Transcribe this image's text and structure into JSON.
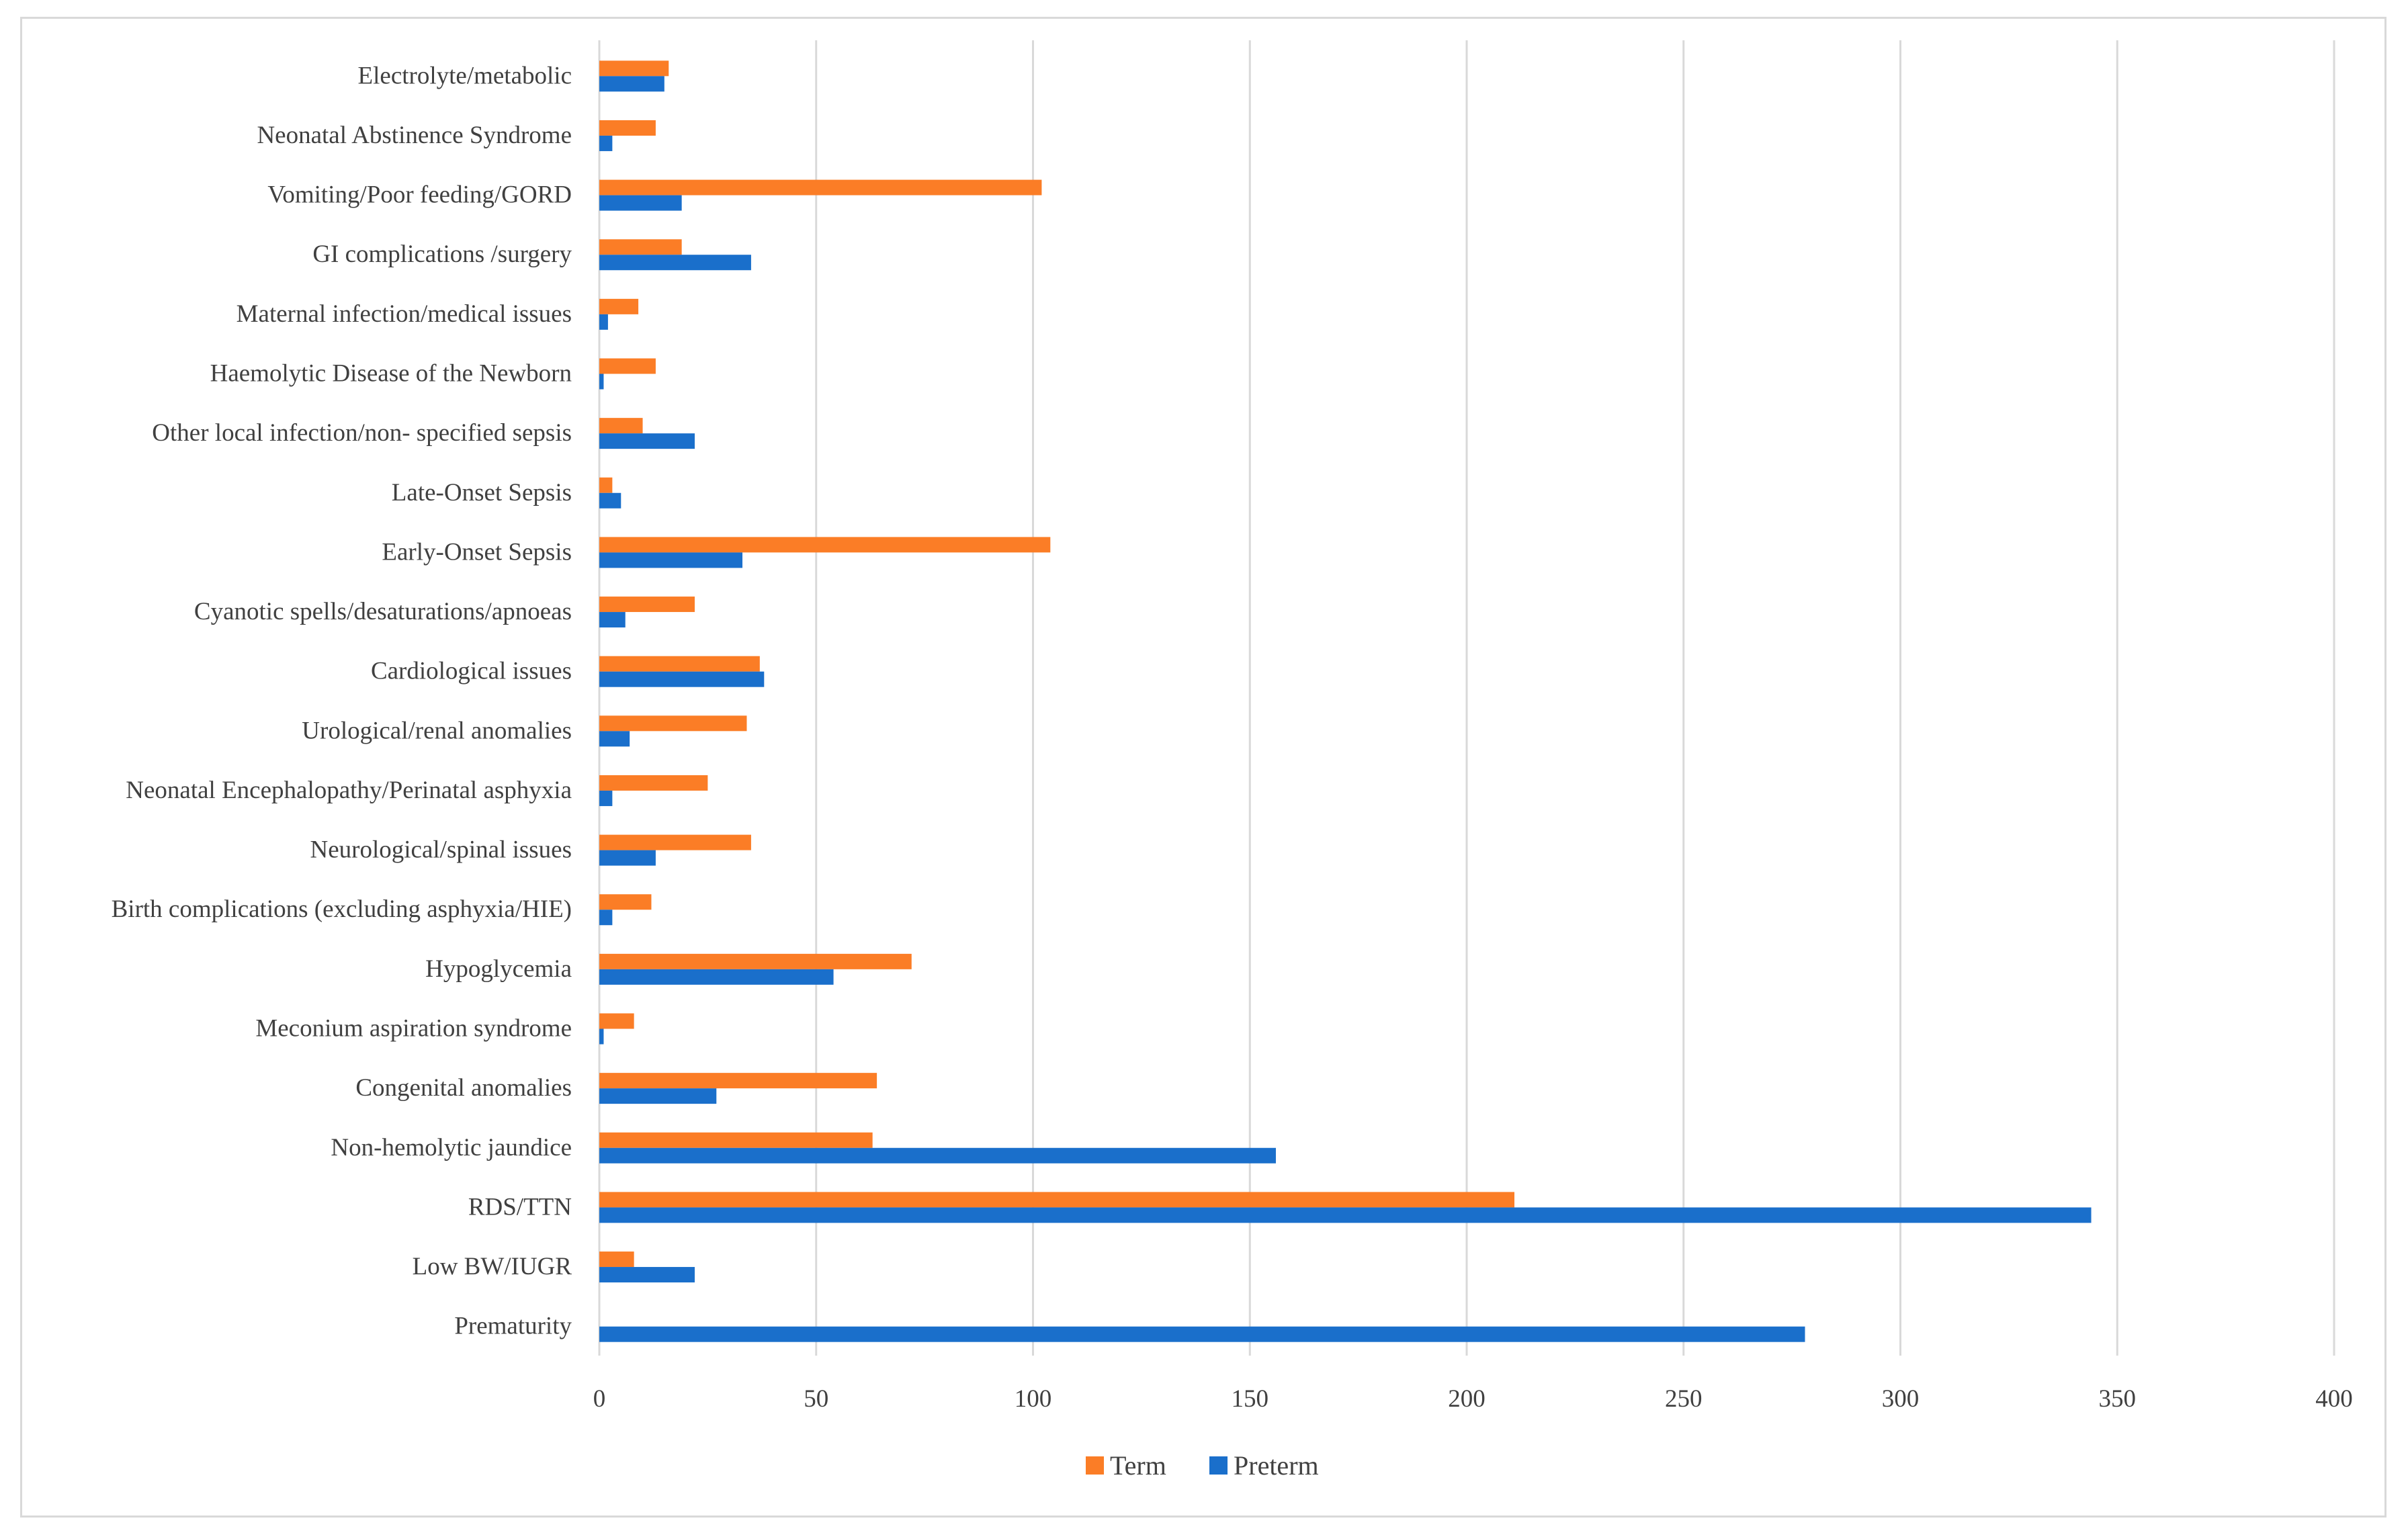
{
  "chart_data": {
    "type": "bar",
    "orientation": "horizontal",
    "title": "",
    "xlabel": "",
    "ylabel": "",
    "xlim": [
      0,
      400
    ],
    "x_ticks": [
      0,
      50,
      100,
      150,
      200,
      250,
      300,
      350,
      400
    ],
    "grid": "vertical",
    "legend_position": "bottom",
    "categories": [
      "Electrolyte/metabolic",
      "Neonatal Abstinence Syndrome",
      "Vomiting/Poor feeding/GORD",
      "GI complications /surgery",
      "Maternal infection/medical issues",
      "Haemolytic Disease of the Newborn",
      "Other local infection/non- specified sepsis",
      "Late-Onset Sepsis",
      "Early-Onset Sepsis",
      "Cyanotic spells/desaturations/apnoeas",
      "Cardiological issues",
      "Urological/renal anomalies",
      "Neonatal Encephalopathy/Perinatal asphyxia",
      "Neurological/spinal issues",
      "Birth complications (excluding asphyxia/HIE)",
      "Hypoglycemia",
      "Meconium aspiration syndrome",
      "Congenital anomalies",
      "Non-hemolytic jaundice",
      "RDS/TTN",
      "Low BW/IUGR",
      "Prematurity"
    ],
    "series": [
      {
        "name": "Term",
        "color": "#fb7d26",
        "values": [
          16,
          13,
          102,
          19,
          9,
          13,
          10,
          3,
          104,
          22,
          37,
          34,
          25,
          35,
          12,
          72,
          8,
          64,
          63,
          211,
          8,
          0
        ]
      },
      {
        "name": "Preterm",
        "color": "#1a6fcb",
        "values": [
          15,
          3,
          19,
          35,
          2,
          1,
          22,
          5,
          33,
          6,
          38,
          7,
          3,
          13,
          3,
          54,
          1,
          27,
          156,
          344,
          22,
          278
        ]
      }
    ]
  }
}
